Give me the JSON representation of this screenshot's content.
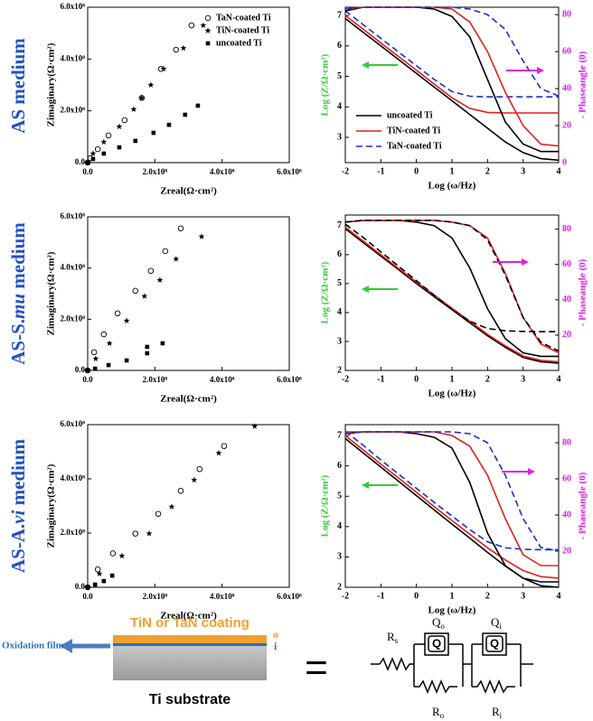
{
  "row_labels": [
    [
      "AS medium"
    ],
    [
      "AS-S.",
      "mu",
      " medium"
    ],
    [
      "AS-A.",
      "vi",
      " medium"
    ]
  ],
  "chart_data": [
    {
      "type": "scatter",
      "xlabel": "Zreal(Ω·cm²)",
      "ylabel": "Zimaginary(Ω·cm²)",
      "legend": "upper right",
      "xlim": [
        0,
        600000000.0
      ],
      "ylim": [
        0,
        600000000.0
      ],
      "xticks": [
        {
          "value": 0,
          "label": "0.0"
        },
        {
          "value": 200000000.0,
          "label": "2.0x10⁸"
        },
        {
          "value": 400000000.0,
          "label": "4.0x10⁸"
        },
        {
          "value": 600000000.0,
          "label": "6.0x10⁸"
        }
      ],
      "yticks": [
        {
          "value": 0,
          "label": "0.0"
        },
        {
          "value": 200000000.0,
          "label": "2.0x10⁸"
        },
        {
          "value": 400000000.0,
          "label": "4.0x10⁸"
        },
        {
          "value": 600000000.0,
          "label": "6.0x10⁸"
        }
      ],
      "series": [
        {
          "name": "TaN-coated Ti",
          "marker": "circle",
          "color": "#000000",
          "x": [
            0,
            8000000.0,
            30000000.0,
            62000000.0,
            110000000.0,
            161000000.0,
            218000000.0,
            263000000.0,
            309000000.0
          ],
          "values": [
            0,
            17000000.0,
            52000000.0,
            105000000.0,
            164000000.0,
            250000000.0,
            362000000.0,
            436000000.0,
            530000000.0
          ]
        },
        {
          "name": "TiN-coated Ti",
          "marker": "star",
          "color": "#000000",
          "x": [
            0,
            16000000.0,
            48000000.0,
            94000000.0,
            137000000.0,
            161000000.0,
            188000000.0,
            226000000.0,
            285000000.0,
            344000000.0
          ],
          "values": [
            0,
            35000000.0,
            80000000.0,
            139000000.0,
            206000000.0,
            250000000.0,
            300000000.0,
            362000000.0,
            442000000.0,
            530000000.0
          ]
        },
        {
          "name": "uncoated Ti",
          "marker": "square",
          "color": "#000000",
          "x": [
            0,
            16000000.0,
            48000000.0,
            94000000.0,
            142000000.0,
            196000000.0,
            242000000.0,
            290000000.0,
            328000000.0
          ],
          "values": [
            0,
            14000000.0,
            35000000.0,
            59000000.0,
            84000000.0,
            115000000.0,
            146000000.0,
            185000000.0,
            220000000.0
          ]
        }
      ]
    },
    {
      "type": "line",
      "xlabel": "Log (ω/Hz)",
      "ylabel": "Log (Z/Ω·cm²)",
      "y2label": "- Phaseangle (0)",
      "legend": "lower left",
      "xlim": [
        -2,
        4
      ],
      "xticks": [
        -2,
        -1,
        0,
        1,
        2,
        3,
        4
      ],
      "ylim": [
        2.17,
        7.27
      ],
      "yticks": [
        3,
        4,
        5,
        6,
        7
      ],
      "y2lim": [
        0,
        84
      ],
      "y2ticks": [
        0,
        20,
        40,
        60,
        80
      ],
      "x": [
        -2,
        -1.5,
        -1,
        -0.5,
        0,
        0.5,
        1,
        1.5,
        2,
        2.5,
        3,
        3.5,
        4
      ],
      "series": [
        {
          "name": "uncoated Ti",
          "color": "#000000",
          "dash": "solid",
          "values": [
            6.9,
            6.45,
            6.0,
            5.55,
            5.1,
            4.65,
            4.2,
            3.75,
            3.3,
            2.85,
            2.5,
            2.3,
            2.25
          ]
        },
        {
          "name": "TiN-coated Ti",
          "color": "#e0201b",
          "dash": "solid",
          "values": [
            7.0,
            6.55,
            6.1,
            5.65,
            5.2,
            4.75,
            4.3,
            3.95,
            3.82,
            3.8,
            3.8,
            3.8,
            3.8
          ]
        },
        {
          "name": "TaN-coated Ti",
          "color": "#1a2fd0",
          "dash": "dashed",
          "values": [
            7.15,
            6.7,
            6.25,
            5.8,
            5.35,
            4.9,
            4.5,
            4.35,
            4.33,
            4.33,
            4.33,
            4.33,
            4.33
          ]
        },
        {
          "axis": "y2",
          "color": "#000000",
          "dash": "solid",
          "values": [
            82,
            84,
            84,
            84,
            84,
            83,
            79,
            68,
            45,
            22,
            10,
            6,
            6
          ]
        },
        {
          "axis": "y2",
          "color": "#e0201b",
          "dash": "solid",
          "values": [
            83,
            84,
            84,
            84,
            84,
            84,
            83,
            76,
            60,
            38,
            20,
            10,
            9
          ]
        },
        {
          "axis": "y2",
          "color": "#1a2fd0",
          "dash": "dashed",
          "values": [
            83,
            84,
            84,
            84,
            84,
            84,
            84,
            83,
            80,
            72,
            55,
            40,
            36
          ]
        }
      ]
    },
    {
      "type": "scatter",
      "xlabel": "Zreal(Ω·cm²)",
      "ylabel": "Zimaginary(Ω·cm²)",
      "xlim": [
        0,
        600000000.0
      ],
      "ylim": [
        0,
        600000000.0
      ],
      "xticks": [
        {
          "value": 0,
          "label": "0.0"
        },
        {
          "value": 200000000.0,
          "label": "2.0x10⁸"
        },
        {
          "value": 400000000.0,
          "label": "4.0x10⁸"
        },
        {
          "value": 600000000.0,
          "label": "6.0x10⁸"
        }
      ],
      "yticks": [
        {
          "value": 0,
          "label": "0.0"
        },
        {
          "value": 200000000.0,
          "label": "2.0x10⁸"
        },
        {
          "value": 400000000.0,
          "label": "4.0x10⁸"
        },
        {
          "value": 600000000.0,
          "label": "6.0x10⁸"
        }
      ],
      "series": [
        {
          "marker": "circle",
          "color": "#000000",
          "x": [
            0,
            19000000.0,
            48000000.0,
            89000000.0,
            142000000.0,
            188000000.0,
            231000000.0,
            277000000.0
          ],
          "values": [
            0,
            71000000.0,
            141000000.0,
            223000000.0,
            311000000.0,
            389000000.0,
            466000000.0,
            555000000.0
          ]
        },
        {
          "marker": "star",
          "color": "#000000",
          "x": [
            0,
            24000000.0,
            65000000.0,
            116000000.0,
            169000000.0,
            215000000.0,
            263000000.0,
            339000000.0
          ],
          "values": [
            0,
            46000000.0,
            106000000.0,
            194000000.0,
            290000000.0,
            353000000.0,
            435000000.0,
            523000000.0
          ]
        },
        {
          "marker": "square",
          "color": "#000000",
          "x": [
            0,
            22000000.0,
            62000000.0,
            116000000.0,
            177000000.0,
            177000000.0,
            223000000.0
          ],
          "values": [
            0,
            7000000.0,
            21000000.0,
            39000000.0,
            67000000.0,
            92000000.0,
            106000000.0
          ]
        }
      ]
    },
    {
      "type": "line",
      "xlabel": "Log (ω/Hz)",
      "ylabel": "Log (Z/Ω·cm²)",
      "y2label": "- Phaseangle (0)",
      "xlim": [
        -2,
        4
      ],
      "xticks": [
        -2,
        -1,
        0,
        1,
        2,
        3,
        4
      ],
      "ylim": [
        2,
        7.37
      ],
      "yticks": [
        2,
        3,
        4,
        5,
        6,
        7
      ],
      "y2lim": [
        0,
        88
      ],
      "y2ticks": [
        20,
        40,
        60,
        80
      ],
      "x": [
        -2,
        -1.5,
        -1,
        -0.5,
        0,
        0.5,
        1,
        1.5,
        2,
        2.5,
        3,
        3.5,
        4
      ],
      "series": [
        {
          "color": "#000000",
          "dash": "solid",
          "values": [
            6.9,
            6.42,
            5.95,
            5.48,
            5.0,
            4.55,
            4.1,
            3.65,
            3.2,
            2.8,
            2.45,
            2.3,
            2.25
          ]
        },
        {
          "color": "#e0201b",
          "dash": "solid",
          "values": [
            6.95,
            6.47,
            6.0,
            5.52,
            5.05,
            4.6,
            4.15,
            3.7,
            3.25,
            2.85,
            2.5,
            2.35,
            2.3
          ]
        },
        {
          "color": "#000000",
          "dash": "dashed",
          "values": [
            7.05,
            6.6,
            6.1,
            5.6,
            5.1,
            4.6,
            4.1,
            3.7,
            3.45,
            3.37,
            3.35,
            3.34,
            3.34
          ]
        },
        {
          "axis": "y2",
          "color": "#000000",
          "dash": "solid",
          "values": [
            84,
            85,
            85,
            85,
            84,
            82,
            75,
            58,
            35,
            18,
            10,
            8,
            8
          ]
        },
        {
          "axis": "y2",
          "color": "#e0201b",
          "dash": "solid",
          "values": [
            84,
            85,
            85,
            85,
            85,
            85,
            84,
            82,
            75,
            55,
            30,
            15,
            10
          ]
        },
        {
          "axis": "y2",
          "color": "#000000",
          "dash": "dashed",
          "values": [
            84,
            85,
            85,
            85,
            85,
            85,
            84,
            82,
            74,
            54,
            30,
            16,
            11
          ]
        }
      ]
    },
    {
      "type": "scatter",
      "xlabel": "Zreal(Ω·cm²)",
      "ylabel": "Zimaginary(Ω·cm²)",
      "xlim": [
        0,
        600000000.0
      ],
      "ylim": [
        0,
        600000000.0
      ],
      "xticks": [
        {
          "value": 0,
          "label": "0.0"
        },
        {
          "value": 200000000.0,
          "label": "2.0x10⁸"
        },
        {
          "value": 400000000.0,
          "label": "4.0x10⁸"
        },
        {
          "value": 600000000.0,
          "label": "6.0x10⁸"
        }
      ],
      "yticks": [
        {
          "value": 0,
          "label": "0.0"
        },
        {
          "value": 200000000.0,
          "label": "2.0x10⁸"
        },
        {
          "value": 400000000.0,
          "label": "4.0x10⁸"
        },
        {
          "value": 600000000.0,
          "label": "6.0x10⁸"
        }
      ],
      "series": [
        {
          "marker": "circle",
          "color": "#000000",
          "x": [
            0,
            30000000.0,
            75000000.0,
            142000000.0,
            210000000.0,
            277000000.0,
            333000000.0,
            406000000.0
          ],
          "values": [
            0,
            66000000.0,
            125000000.0,
            198000000.0,
            271000000.0,
            356000000.0,
            436000000.0,
            521000000.0
          ]
        },
        {
          "marker": "star",
          "color": "#000000",
          "x": [
            0,
            35000000.0,
            102000000.0,
            183000000.0,
            250000000.0,
            317000000.0,
            390000000.0,
            497000000.0
          ],
          "values": [
            0,
            50000000.0,
            116000000.0,
            198000000.0,
            297000000.0,
            396000000.0,
            495000000.0,
            594000000.0
          ]
        },
        {
          "marker": "square",
          "color": "#000000",
          "x": [
            0,
            22000000.0,
            48000000.0,
            73000000.0
          ],
          "values": [
            0,
            10000000.0,
            23000000.0,
            43000000.0
          ]
        }
      ]
    },
    {
      "type": "line",
      "xlabel": "Log (ω/Hz)",
      "ylabel": "Log (Z/Ω·cm²)",
      "y2label": "- Phaseangle (0)",
      "xlim": [
        -2,
        4
      ],
      "xticks": [
        -2,
        -1,
        0,
        1,
        2,
        3,
        4
      ],
      "ylim": [
        2,
        7.36
      ],
      "yticks": [
        2,
        3,
        4,
        5,
        6,
        7
      ],
      "y2lim": [
        0,
        90
      ],
      "y2ticks": [
        20,
        40,
        60,
        80
      ],
      "x": [
        -2,
        -1.5,
        -1,
        -0.5,
        0,
        0.5,
        1,
        1.5,
        2,
        2.5,
        3,
        3.5,
        4
      ],
      "series": [
        {
          "color": "#000000",
          "dash": "solid",
          "values": [
            6.9,
            6.43,
            5.96,
            5.49,
            5.02,
            4.55,
            4.08,
            3.62,
            3.15,
            2.7,
            2.3,
            2.05,
            2.0
          ]
        },
        {
          "color": "#e0201b",
          "dash": "solid",
          "values": [
            7.0,
            6.53,
            6.06,
            5.6,
            5.13,
            4.66,
            4.2,
            3.75,
            3.3,
            2.9,
            2.55,
            2.35,
            2.3
          ]
        },
        {
          "color": "#1a2fd0",
          "dash": "dashed",
          "values": [
            7.15,
            6.68,
            6.2,
            5.73,
            5.26,
            4.8,
            4.35,
            3.9,
            3.5,
            3.3,
            3.25,
            3.24,
            3.24
          ]
        },
        {
          "axis": "y2",
          "color": "#000000",
          "dash": "solid",
          "values": [
            85,
            86,
            86,
            86,
            85,
            83,
            77,
            58,
            30,
            12,
            5,
            3,
            3
          ]
        },
        {
          "axis": "y2",
          "color": "#e0201b",
          "dash": "solid",
          "values": [
            86,
            86,
            86,
            86,
            86,
            86,
            84,
            78,
            62,
            38,
            18,
            12,
            12
          ]
        },
        {
          "axis": "y2",
          "color": "#1a2fd0",
          "dash": "dashed",
          "values": [
            85,
            86,
            86,
            86,
            86,
            86,
            86,
            85,
            80,
            62,
            38,
            22,
            20
          ]
        }
      ]
    }
  ],
  "diagram": {
    "coating": "TiN or TaN coating",
    "outer": "o",
    "inner": "i",
    "oxidation": "Oxidation film",
    "substrate": "Ti substrate",
    "equals": "=",
    "box_label": "Q",
    "elements": [
      {
        "symbol": "R",
        "sub": "s"
      },
      {
        "symbol": "Q",
        "sub": "o"
      },
      {
        "symbol": "Q",
        "sub": "i"
      },
      {
        "symbol": "R",
        "sub": "o"
      },
      {
        "symbol": "R",
        "sub": "i"
      }
    ]
  }
}
